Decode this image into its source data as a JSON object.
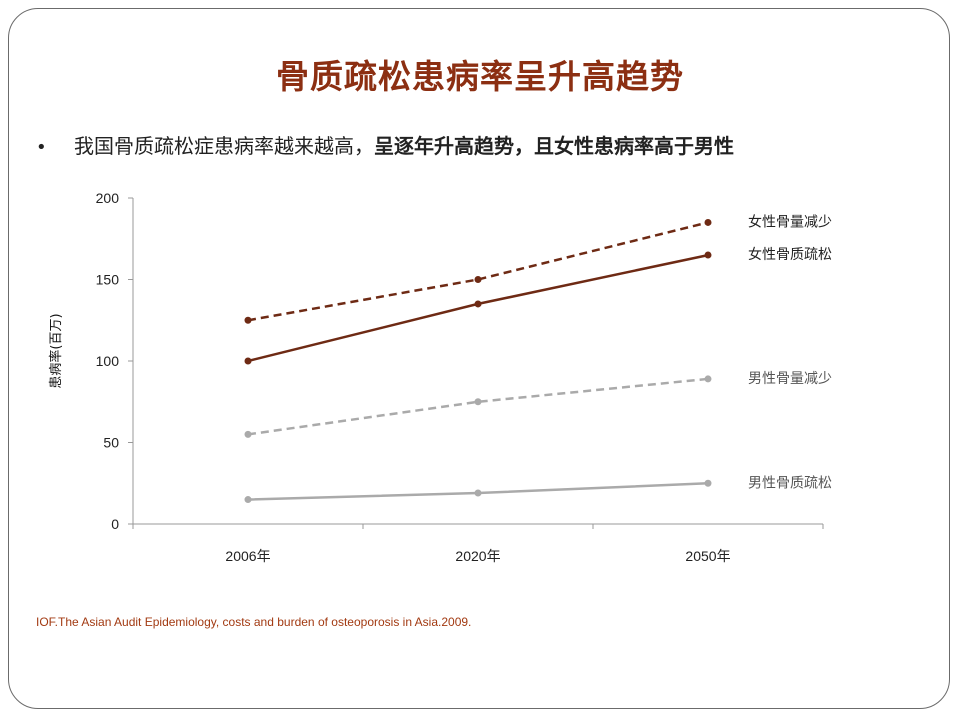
{
  "slide": {
    "title": "骨质疏松患病率呈升高趋势",
    "bullet_marker": "•",
    "bullet_text_normal": "我国骨质疏松症患病率越来越高，",
    "bullet_text_bold": "呈逐年升高趋势，且女性患病率高于男性",
    "source": "IOF.The Asian Audit Epidemiology, costs and burden of osteoporosis in Asia.2009."
  },
  "chart_data": {
    "type": "line",
    "categories": [
      "2006年",
      "2020年",
      "2050年"
    ],
    "ylabel": "患病率(百万)",
    "ylim": [
      0,
      200
    ],
    "yticks": [
      0,
      50,
      100,
      150,
      200
    ],
    "grid": false,
    "legend": "inline-right",
    "series": [
      {
        "name": "女性骨量减少",
        "values": [
          125,
          150,
          185
        ],
        "color": "#6e2a14",
        "dashed": true
      },
      {
        "name": "女性骨质疏松",
        "values": [
          100,
          135,
          165
        ],
        "color": "#6e2a14",
        "dashed": false
      },
      {
        "name": "男性骨量减少",
        "values": [
          55,
          75,
          89
        ],
        "color": "#aaaaaa",
        "dashed": true
      },
      {
        "name": "男性骨质疏松",
        "values": [
          15,
          19,
          25
        ],
        "color": "#aaaaaa",
        "dashed": false
      }
    ]
  }
}
